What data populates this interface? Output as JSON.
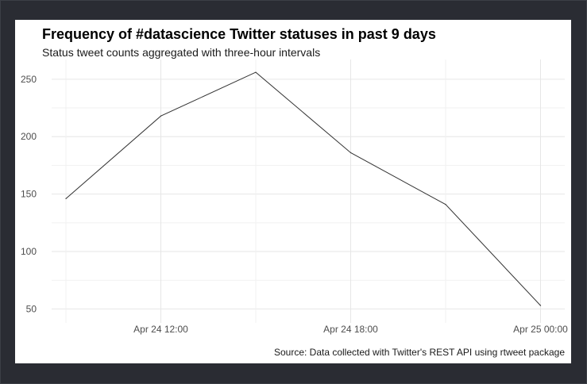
{
  "plot": {
    "title": "Frequency of #datascience Twitter statuses in past 9 days",
    "subtitle": "Status tweet counts aggregated with three-hour intervals",
    "caption": "Source: Data collected with Twitter's REST API using rtweet package"
  },
  "chart_data": {
    "type": "line",
    "title": "Frequency of #datascience Twitter statuses in past 9 days",
    "subtitle": "Status tweet counts aggregated with three-hour intervals",
    "caption": "Source: Data collected with Twitter's REST API using rtweet package",
    "xlabel": "",
    "ylabel": "",
    "x": [
      "Apr 24 09:00",
      "Apr 24 12:00",
      "Apr 24 15:00",
      "Apr 24 18:00",
      "Apr 24 21:00",
      "Apr 25 00:00"
    ],
    "values": [
      146,
      218,
      256,
      186,
      141,
      53
    ],
    "x_ticks": [
      "Apr 24 12:00",
      "Apr 24 18:00",
      "Apr 25 00:00"
    ],
    "y_ticks": [
      50,
      100,
      150,
      200,
      250
    ],
    "ylim": [
      42,
      263
    ],
    "grid": true,
    "line_color": "#333333"
  }
}
